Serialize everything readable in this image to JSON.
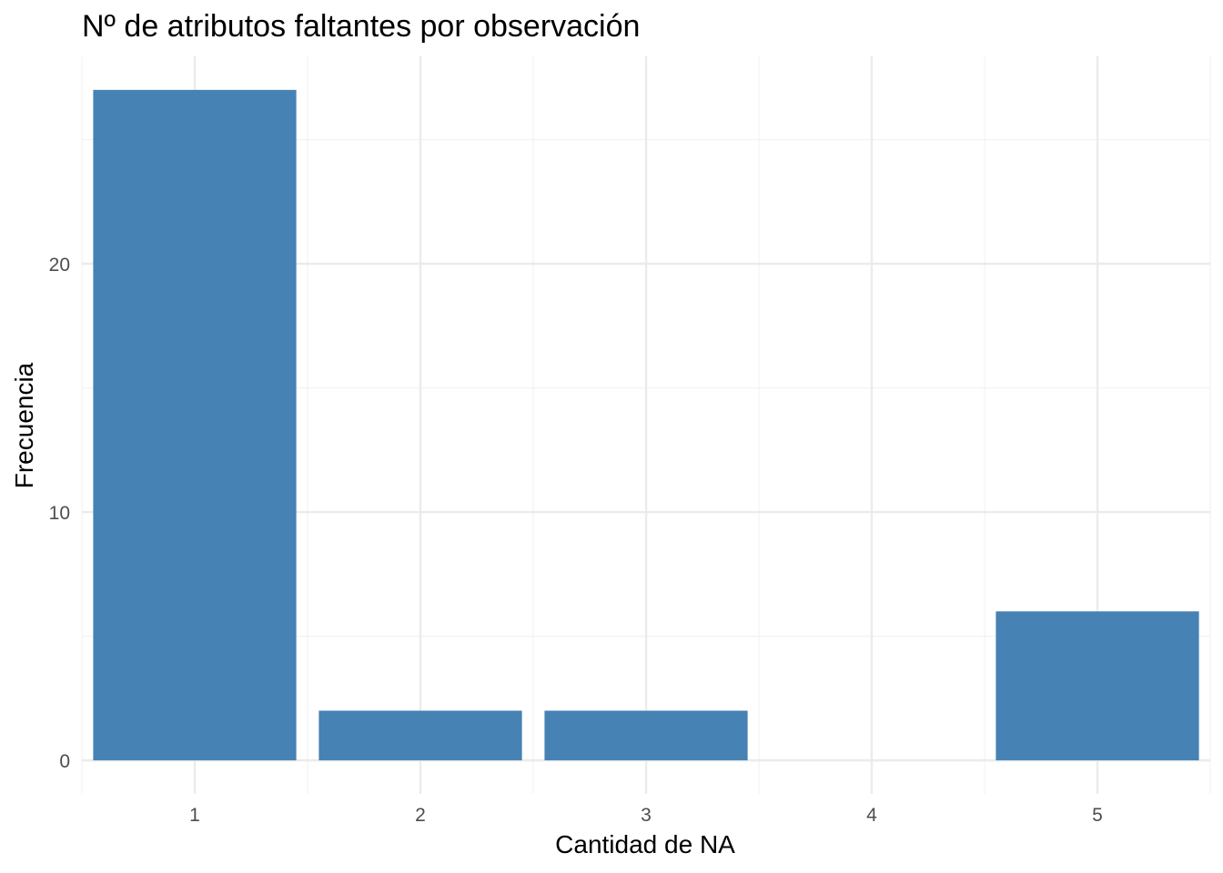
{
  "chart_data": {
    "type": "bar",
    "title": "Nº de atributos faltantes por observación",
    "xlabel": "Cantidad de NA",
    "ylabel": "Frecuencia",
    "categories": [
      "1",
      "2",
      "3",
      "4",
      "5"
    ],
    "x": [
      1,
      2,
      3,
      4,
      5
    ],
    "values": [
      27,
      2,
      2,
      0,
      6
    ],
    "y_ticks": [
      0,
      10,
      20
    ],
    "x_ticks": [
      1,
      2,
      3,
      4,
      5
    ],
    "xlim": [
      0.5,
      5.5
    ],
    "ylim": [
      -1.35,
      28.35
    ],
    "grid": true,
    "legend": "none",
    "colors": {
      "bar": "#4682B4",
      "grid_major": "#ebebeb",
      "grid_minor": "#f2f2f2",
      "tick_label": "#4d4d4d",
      "text": "#000000"
    }
  }
}
